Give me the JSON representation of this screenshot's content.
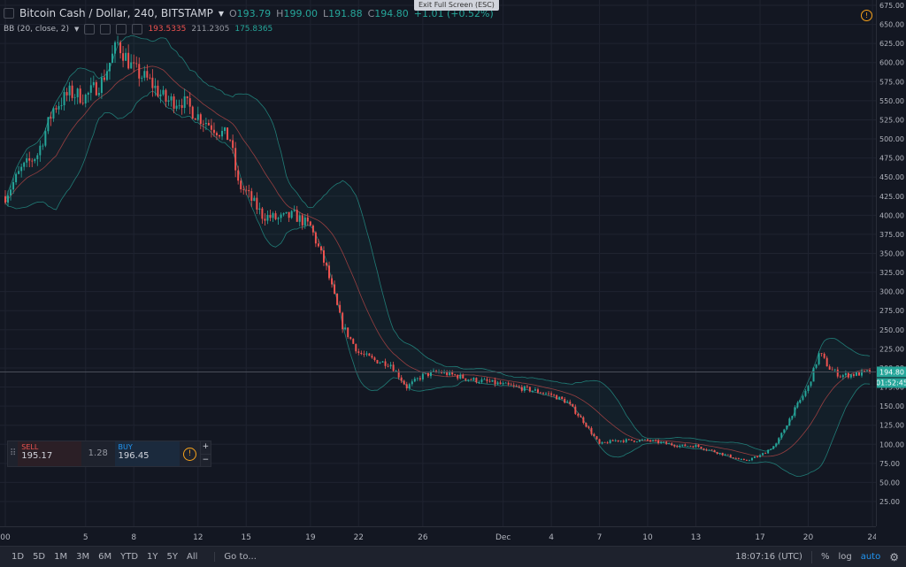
{
  "header": {
    "symbol": "Bitcoin Cash / Dollar, 240, BITSTAMP",
    "ohlc": [
      {
        "label": "O",
        "value": "193.79"
      },
      {
        "label": "H",
        "value": "199.00"
      },
      {
        "label": "L",
        "value": "191.88"
      },
      {
        "label": "C",
        "value": "194.80"
      }
    ],
    "change": "+1.01 (+0.52%)",
    "exit_fullscreen": "Exit Full Screen (ESC)"
  },
  "indicator": {
    "name": "BB (20, close, 2)",
    "values": [
      "193.5335",
      "211.2305",
      "175.8365"
    ]
  },
  "trade": {
    "sell_label": "SELL",
    "sell_price": "195.17",
    "spread": "1.28",
    "buy_label": "BUY",
    "buy_price": "196.45",
    "plus": "+",
    "minus": "−"
  },
  "price_labels": {
    "current": "194.80",
    "countdown": "01:52:45"
  },
  "bottom": {
    "timeframes": [
      "1D",
      "5D",
      "1M",
      "3M",
      "6M",
      "YTD",
      "1Y",
      "5Y",
      "All"
    ],
    "goto": "Go to...",
    "clock": "18:07:16 (UTC)",
    "percent": "%",
    "log": "log",
    "auto": "auto"
  },
  "colors": {
    "up": "#26a69a",
    "down": "#ef5350",
    "background": "#131722",
    "grid": "#1f2330",
    "bands": "#26a69a",
    "basis": "#ef5350"
  },
  "chart_data": {
    "type": "candlestick",
    "title": "Bitcoin Cash / Dollar, 240, BITSTAMP",
    "ylim": [
      25,
      675
    ],
    "y_ticks": [
      "25.00",
      "50.00",
      "75.00",
      "100.00",
      "125.00",
      "150.00",
      "175.00",
      "200.00",
      "225.00",
      "250.00",
      "275.00",
      "300.00",
      "325.00",
      "350.00",
      "375.00",
      "400.00",
      "425.00",
      "450.00",
      "475.00",
      "500.00",
      "525.00",
      "550.00",
      "575.00",
      "600.00",
      "625.00",
      "650.00",
      "675.00"
    ],
    "x_ticks": [
      {
        "label": "00",
        "day": 0
      },
      {
        "label": "5",
        "day": 5
      },
      {
        "label": "8",
        "day": 8
      },
      {
        "label": "12",
        "day": 12
      },
      {
        "label": "15",
        "day": 15
      },
      {
        "label": "19",
        "day": 19
      },
      {
        "label": "22",
        "day": 22
      },
      {
        "label": "26",
        "day": 26
      },
      {
        "label": "Dec",
        "day": 31
      },
      {
        "label": "4",
        "day": 34
      },
      {
        "label": "7",
        "day": 37
      },
      {
        "label": "10",
        "day": 40
      },
      {
        "label": "13",
        "day": 43
      },
      {
        "label": "17",
        "day": 47
      },
      {
        "label": "20",
        "day": 50
      },
      {
        "label": "24",
        "day": 54
      }
    ],
    "close_anchors": [
      [
        0,
        425
      ],
      [
        1,
        460
      ],
      [
        2,
        480
      ],
      [
        3,
        540
      ],
      [
        4,
        560
      ],
      [
        5,
        555
      ],
      [
        6,
        575
      ],
      [
        7,
        625
      ],
      [
        8,
        590
      ],
      [
        9,
        575
      ],
      [
        10,
        550
      ],
      [
        11,
        550
      ],
      [
        12,
        530
      ],
      [
        13,
        515
      ],
      [
        14,
        500
      ],
      [
        14.5,
        440
      ],
      [
        15,
        430
      ],
      [
        16,
        400
      ],
      [
        17,
        395
      ],
      [
        18,
        400
      ],
      [
        19,
        385
      ],
      [
        20,
        330
      ],
      [
        21,
        255
      ],
      [
        22,
        220
      ],
      [
        23,
        210
      ],
      [
        24,
        205
      ],
      [
        25,
        175
      ],
      [
        26,
        190
      ],
      [
        27,
        195
      ],
      [
        28,
        190
      ],
      [
        29,
        185
      ],
      [
        30,
        182
      ],
      [
        31,
        178
      ],
      [
        33,
        170
      ],
      [
        34,
        165
      ],
      [
        35,
        155
      ],
      [
        36,
        130
      ],
      [
        37,
        100
      ],
      [
        38,
        105
      ],
      [
        40,
        105
      ],
      [
        42,
        98
      ],
      [
        43,
        98
      ],
      [
        45,
        85
      ],
      [
        46,
        78
      ],
      [
        47,
        85
      ],
      [
        48,
        100
      ],
      [
        49,
        140
      ],
      [
        50,
        175
      ],
      [
        50.7,
        220
      ],
      [
        51.3,
        200
      ],
      [
        52,
        190
      ],
      [
        53,
        192
      ],
      [
        53.9,
        194.8
      ]
    ],
    "current_price": 194.8,
    "bollinger": {
      "period": 20,
      "source": "close",
      "mult": 2,
      "basis": 193.5335,
      "upper": 211.2305,
      "lower": 175.8365
    }
  }
}
